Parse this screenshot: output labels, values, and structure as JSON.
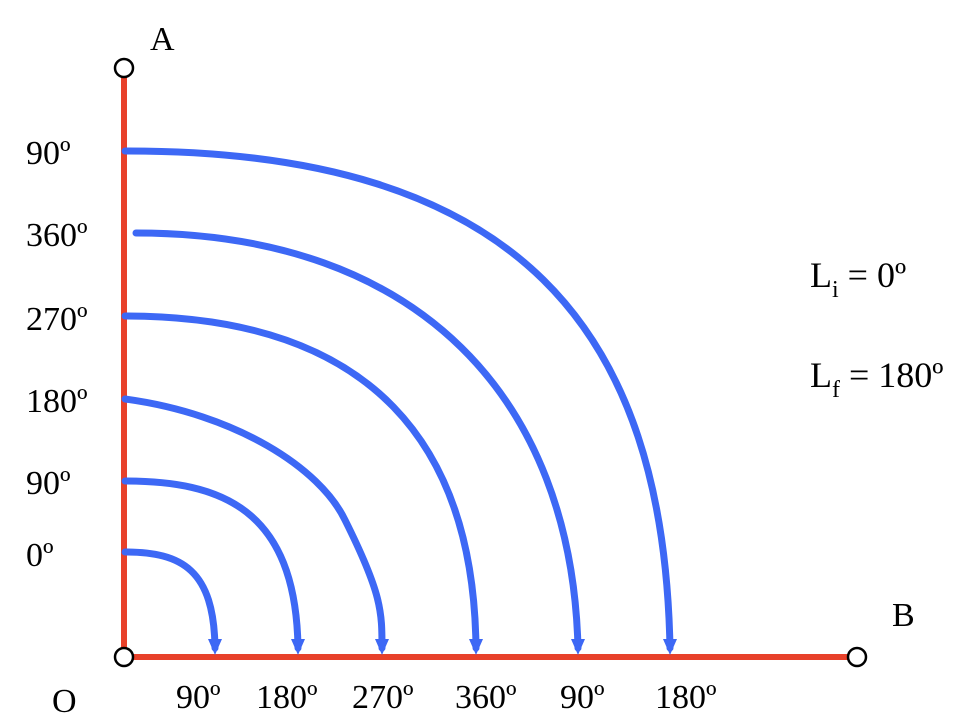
{
  "colors": {
    "axis": "#e8412a",
    "arc": "#3d68f5",
    "text": "#000000"
  },
  "points": {
    "a": "A",
    "b": "B",
    "o": "O"
  },
  "vertical_labels": [
    "90º",
    "360º",
    "270º",
    "180º",
    "90º",
    "0º"
  ],
  "horizontal_labels": [
    "90º",
    "180º",
    "270º",
    "360º",
    "90º",
    "180º"
  ],
  "equations": {
    "initial": {
      "symbol": "L",
      "subscript": "i",
      "rest": " = 0º"
    },
    "final": {
      "symbol": "L",
      "subscript": "f",
      "rest": " = 180º"
    }
  }
}
